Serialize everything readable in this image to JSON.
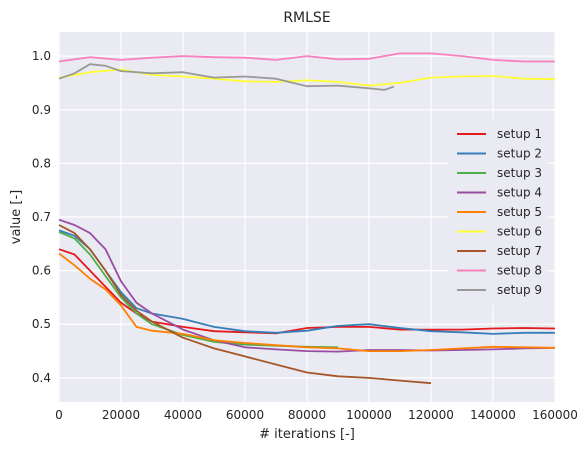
{
  "chart_data": {
    "type": "line",
    "title": "RMLSE",
    "xlabel": "# iterations [-]",
    "ylabel": "value [-]",
    "xlim": [
      0,
      160000
    ],
    "ylim": [
      0.355,
      1.045
    ],
    "xticks": [
      0,
      20000,
      40000,
      60000,
      80000,
      100000,
      120000,
      140000,
      160000
    ],
    "yticks": [
      0.4,
      0.5,
      0.6,
      0.7,
      0.8,
      0.9,
      1.0
    ],
    "xtick_labels": [
      "0",
      "20000",
      "40000",
      "60000",
      "80000",
      "100000",
      "120000",
      "140000",
      "160000"
    ],
    "ytick_labels": [
      "0.4",
      "0.5",
      "0.6",
      "0.7",
      "0.8",
      "0.9",
      "1.0"
    ],
    "grid": true,
    "legend_position": "right",
    "series": [
      {
        "name": "setup 1",
        "color": "#e41a1c",
        "x": [
          0,
          5000,
          10000,
          15000,
          20000,
          25000,
          30000,
          40000,
          50000,
          60000,
          70000,
          80000,
          90000,
          100000,
          110000,
          120000,
          130000,
          140000,
          150000,
          160000
        ],
        "y": [
          0.64,
          0.63,
          0.6,
          0.57,
          0.54,
          0.52,
          0.505,
          0.495,
          0.487,
          0.485,
          0.483,
          0.493,
          0.495,
          0.495,
          0.49,
          0.49,
          0.49,
          0.492,
          0.493,
          0.492
        ]
      },
      {
        "name": "setup 2",
        "color": "#377eb8",
        "x": [
          0,
          5000,
          10000,
          15000,
          20000,
          25000,
          30000,
          40000,
          50000,
          60000,
          70000,
          80000,
          90000,
          100000,
          110000,
          120000,
          130000,
          140000,
          150000,
          160000
        ],
        "y": [
          0.675,
          0.665,
          0.64,
          0.6,
          0.56,
          0.53,
          0.52,
          0.51,
          0.495,
          0.487,
          0.484,
          0.488,
          0.497,
          0.5,
          0.493,
          0.487,
          0.485,
          0.482,
          0.484,
          0.484
        ]
      },
      {
        "name": "setup 3",
        "color": "#4daf4a",
        "x": [
          0,
          5000,
          10000,
          15000,
          20000,
          25000,
          30000,
          40000,
          50000,
          60000,
          70000,
          80000,
          90000
        ],
        "y": [
          0.672,
          0.66,
          0.63,
          0.59,
          0.55,
          0.52,
          0.5,
          0.48,
          0.467,
          0.462,
          0.46,
          0.458,
          0.457
        ]
      },
      {
        "name": "setup 4",
        "color": "#984ea3",
        "x": [
          0,
          5000,
          10000,
          15000,
          20000,
          25000,
          30000,
          40000,
          50000,
          60000,
          70000,
          80000,
          90000,
          100000,
          110000,
          120000,
          130000,
          140000,
          150000,
          160000
        ],
        "y": [
          0.695,
          0.685,
          0.67,
          0.64,
          0.58,
          0.54,
          0.52,
          0.49,
          0.47,
          0.457,
          0.453,
          0.45,
          0.449,
          0.452,
          0.452,
          0.451,
          0.452,
          0.453,
          0.455,
          0.456
        ]
      },
      {
        "name": "setup 5",
        "color": "#ff7f00",
        "x": [
          0,
          5000,
          10000,
          15000,
          20000,
          25000,
          30000,
          40000,
          50000,
          60000,
          70000,
          80000,
          90000,
          100000,
          110000,
          120000,
          130000,
          140000,
          150000,
          160000
        ],
        "y": [
          0.632,
          0.61,
          0.585,
          0.565,
          0.535,
          0.495,
          0.488,
          0.482,
          0.47,
          0.465,
          0.461,
          0.457,
          0.455,
          0.45,
          0.45,
          0.452,
          0.455,
          0.458,
          0.457,
          0.456
        ]
      },
      {
        "name": "setup 6",
        "color": "#ffff33",
        "x": [
          0,
          10000,
          20000,
          30000,
          40000,
          50000,
          60000,
          70000,
          80000,
          90000,
          100000,
          110000,
          120000,
          130000,
          140000,
          150000,
          160000
        ],
        "y": [
          0.96,
          0.97,
          0.975,
          0.965,
          0.962,
          0.958,
          0.953,
          0.952,
          0.955,
          0.952,
          0.945,
          0.95,
          0.96,
          0.962,
          0.963,
          0.958,
          0.957
        ]
      },
      {
        "name": "setup 7",
        "color": "#a65628",
        "x": [
          0,
          5000,
          10000,
          15000,
          20000,
          25000,
          30000,
          40000,
          50000,
          60000,
          70000,
          80000,
          90000,
          100000,
          110000,
          120000
        ],
        "y": [
          0.685,
          0.67,
          0.64,
          0.6,
          0.555,
          0.525,
          0.505,
          0.475,
          0.455,
          0.44,
          0.425,
          0.41,
          0.403,
          0.4,
          0.395,
          0.39
        ]
      },
      {
        "name": "setup 8",
        "color": "#f781bf",
        "x": [
          0,
          10000,
          20000,
          30000,
          40000,
          50000,
          60000,
          70000,
          80000,
          90000,
          100000,
          110000,
          120000,
          130000,
          140000,
          150000,
          160000
        ],
        "y": [
          0.99,
          0.998,
          0.993,
          0.997,
          1.0,
          0.998,
          0.997,
          0.993,
          1.0,
          0.994,
          0.995,
          1.005,
          1.005,
          1.0,
          0.993,
          0.99,
          0.99
        ]
      },
      {
        "name": "setup 9",
        "color": "#999999",
        "x": [
          0,
          5000,
          10000,
          15000,
          20000,
          30000,
          40000,
          50000,
          60000,
          70000,
          80000,
          90000,
          100000,
          105000,
          108000
        ],
        "y": [
          0.958,
          0.968,
          0.985,
          0.982,
          0.972,
          0.968,
          0.97,
          0.96,
          0.962,
          0.958,
          0.944,
          0.945,
          0.94,
          0.937,
          0.943
        ]
      }
    ]
  }
}
